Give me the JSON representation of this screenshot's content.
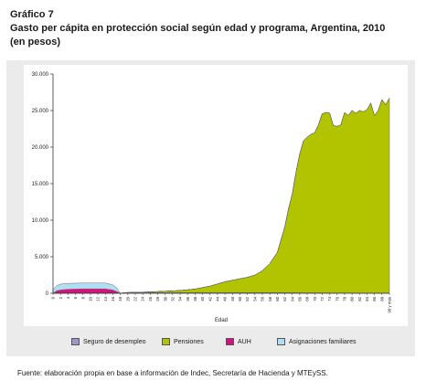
{
  "heading": {
    "line1": "Gráfico 7",
    "line2": "Gasto per cápita en protección social según edad y programa, Argentina, 2010",
    "line3": "(en pesos)"
  },
  "source": "Fuente: elaboración propia en base a información de Indec, Secretaría de Hacienda y MTEySS.",
  "colors": {
    "seguro": "#9d97c7",
    "pensiones": "#b2c400",
    "auh": "#d7117e",
    "asignaciones": "#b3ddf2"
  },
  "chart_data": {
    "type": "area",
    "stacked": true,
    "xlabel": "Edad",
    "ylabel": "",
    "ylim": [
      0,
      30000
    ],
    "yticks": [
      0,
      5000,
      10000,
      15000,
      20000,
      25000,
      30000
    ],
    "ytick_labels": [
      "0",
      "5.000",
      "10.000",
      "15.000",
      "20.000",
      "25.000",
      "30.000"
    ],
    "x_tick_labels": [
      "0",
      "2",
      "4",
      "6",
      "8",
      "10",
      "12",
      "14",
      "16",
      "18",
      "20",
      "22",
      "24",
      "26",
      "28",
      "30",
      "32",
      "34",
      "36",
      "38",
      "40",
      "42",
      "44",
      "46",
      "48",
      "50",
      "52",
      "54",
      "56",
      "58",
      "60",
      "62",
      "64",
      "66",
      "68",
      "70",
      "72",
      "74",
      "76",
      "78",
      "80",
      "82",
      "84",
      "86",
      "88",
      "90 y más"
    ],
    "grid": false,
    "legend_position": "bottom",
    "series": [
      {
        "name": "Seguro de desempleo",
        "x": [
          0,
          18,
          19,
          20,
          60,
          90
        ],
        "values": [
          0,
          0,
          60,
          80,
          80,
          0
        ]
      },
      {
        "name": "Pensiones",
        "x": [
          0,
          18,
          22,
          26,
          30,
          34,
          38,
          40,
          42,
          44,
          46,
          48,
          50,
          52,
          54,
          56,
          58,
          60,
          62,
          63,
          64,
          65,
          66,
          67,
          68,
          69,
          70,
          71,
          72,
          73,
          74,
          75,
          76,
          77,
          78,
          79,
          80,
          81,
          82,
          83,
          84,
          85,
          86,
          87,
          88,
          89,
          90
        ],
        "values": [
          0,
          0,
          50,
          100,
          200,
          300,
          500,
          700,
          900,
          1200,
          1500,
          1700,
          1900,
          2100,
          2400,
          3000,
          4000,
          5500,
          9000,
          11500,
          13500,
          16500,
          19000,
          20800,
          21300,
          21700,
          21900,
          23000,
          24500,
          24700,
          24600,
          22900,
          22800,
          23000,
          24700,
          24300,
          25000,
          24600,
          25000,
          24800,
          25100,
          26000,
          24300,
          25000,
          26500,
          25800,
          26700
        ]
      },
      {
        "name": "AUH",
        "x": [
          0,
          1,
          2,
          4,
          8,
          12,
          14,
          16,
          17,
          18
        ],
        "values": [
          0,
          350,
          450,
          550,
          600,
          600,
          600,
          450,
          250,
          0
        ]
      },
      {
        "name": "Asignaciones familiares",
        "x": [
          0,
          1,
          2,
          4,
          8,
          12,
          14,
          16,
          17,
          18
        ],
        "values": [
          500,
          700,
          800,
          800,
          800,
          800,
          800,
          700,
          500,
          0
        ]
      }
    ]
  }
}
